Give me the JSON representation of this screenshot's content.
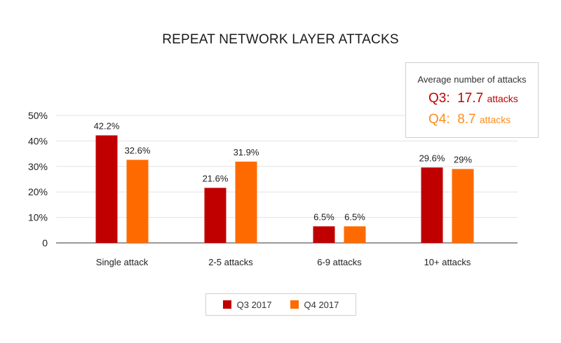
{
  "chart_data": {
    "type": "bar",
    "title": "REPEAT NETWORK LAYER ATTACKS",
    "categories": [
      "Single attack",
      "2-5 attacks",
      "6-9 attacks",
      "10+ attacks"
    ],
    "series": [
      {
        "name": "Q3 2017",
        "color": "#c00000",
        "values": [
          42.2,
          21.6,
          6.5,
          29.6
        ],
        "labels": [
          "42.2%",
          "21.6%",
          "6.5%",
          "29.6%"
        ]
      },
      {
        "name": "Q4 2017",
        "color": "#ff6a00",
        "values": [
          32.6,
          31.9,
          6.5,
          29
        ],
        "labels": [
          "32.6%",
          "31.9%",
          "6.5%",
          "29%"
        ]
      }
    ],
    "ylim": [
      0,
      50
    ],
    "yticks": [
      0,
      10,
      20,
      30,
      40,
      50
    ],
    "ytick_labels": [
      "0",
      "10%",
      "20%",
      "30%",
      "40%",
      "50%"
    ],
    "grid": true,
    "legend_position": "bottom"
  },
  "average_box": {
    "title": "Average number of attacks",
    "q3_label": "Q3:",
    "q3_value": "17.7",
    "q3_unit": "attacks",
    "q3_color": "#c00000",
    "q4_label": "Q4:",
    "q4_value": "8.7",
    "q4_unit": "attacks",
    "q4_color": "#ff8c1a"
  }
}
